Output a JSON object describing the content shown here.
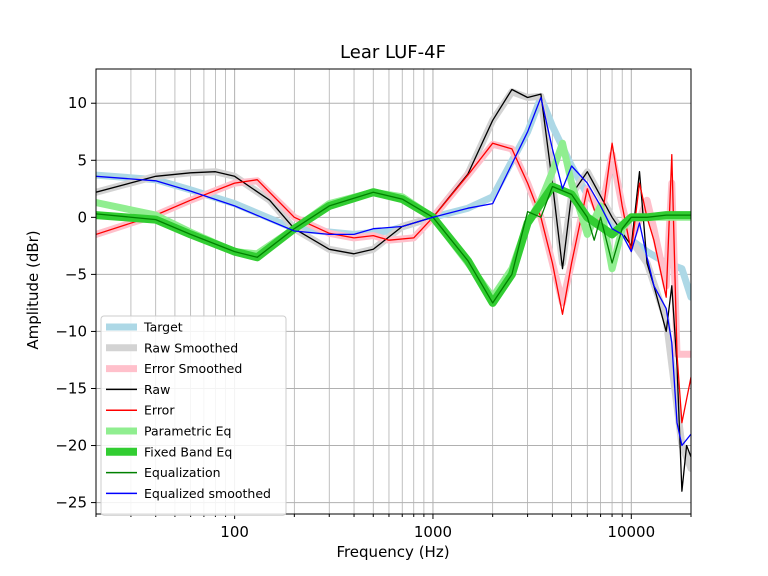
{
  "chart_data": {
    "type": "line",
    "title": "Lear LUF-4F",
    "xlabel": "Frequency (Hz)",
    "ylabel": "Amplitude (dBr)",
    "x_scale": "log",
    "xlim": [
      20,
      20000
    ],
    "ylim": [
      -26,
      13
    ],
    "x_major_ticks": [
      100,
      1000,
      10000
    ],
    "x_tick_labels": [
      "100",
      "1000",
      "10000"
    ],
    "y_ticks": [
      -25,
      -20,
      -15,
      -10,
      -5,
      0,
      5,
      10
    ],
    "y_tick_labels": [
      "−25",
      "−20",
      "−15",
      "−10",
      "−5",
      "0",
      "5",
      "10"
    ],
    "grid": true,
    "legend_position": "lower-left",
    "series": [
      {
        "name": "Target",
        "color": "#add8e6",
        "style": "thick",
        "points": [
          [
            20,
            3.7
          ],
          [
            40,
            3.3
          ],
          [
            60,
            2.4
          ],
          [
            100,
            1.2
          ],
          [
            200,
            -1.0
          ],
          [
            400,
            -1.5
          ],
          [
            600,
            -1.2
          ],
          [
            1000,
            0
          ],
          [
            1500,
            0.8
          ],
          [
            2000,
            1.8
          ],
          [
            3000,
            7.5
          ],
          [
            3500,
            10.5
          ],
          [
            4000,
            8
          ],
          [
            5000,
            4.5
          ],
          [
            6000,
            2
          ],
          [
            8000,
            -0.5
          ],
          [
            10000,
            -2
          ],
          [
            12000,
            -3
          ],
          [
            15000,
            -4
          ],
          [
            18000,
            -4.5
          ],
          [
            20000,
            -7
          ]
        ]
      },
      {
        "name": "Raw Smoothed",
        "color": "#d3d3d3",
        "style": "thick",
        "points": [
          [
            20,
            2.2
          ],
          [
            40,
            3.6
          ],
          [
            60,
            3.9
          ],
          [
            80,
            4.0
          ],
          [
            100,
            3.6
          ],
          [
            150,
            1.5
          ],
          [
            200,
            -1.0
          ],
          [
            300,
            -2.8
          ],
          [
            400,
            -3.2
          ],
          [
            500,
            -2.8
          ],
          [
            700,
            -0.8
          ],
          [
            1000,
            0
          ],
          [
            1500,
            3.8
          ],
          [
            2000,
            8.5
          ],
          [
            2500,
            11.0
          ],
          [
            3000,
            10.5
          ],
          [
            3500,
            10.6
          ],
          [
            4000,
            3
          ],
          [
            4500,
            -4
          ],
          [
            5000,
            2
          ],
          [
            6000,
            4
          ],
          [
            8000,
            0
          ],
          [
            10000,
            -2
          ],
          [
            12000,
            -4
          ],
          [
            15000,
            -9
          ],
          [
            18000,
            -20
          ],
          [
            20000,
            -22
          ]
        ]
      },
      {
        "name": "Error Smoothed",
        "color": "#ffc0cb",
        "style": "thick",
        "points": [
          [
            20,
            -1.5
          ],
          [
            40,
            0.2
          ],
          [
            60,
            1.5
          ],
          [
            100,
            3.0
          ],
          [
            130,
            3.2
          ],
          [
            200,
            0.0
          ],
          [
            300,
            -1.4
          ],
          [
            400,
            -1.8
          ],
          [
            500,
            -1.6
          ],
          [
            600,
            -2.0
          ],
          [
            800,
            -1.8
          ],
          [
            1000,
            0
          ],
          [
            1500,
            3.7
          ],
          [
            2000,
            6.4
          ],
          [
            2500,
            6.0
          ],
          [
            3000,
            3.0
          ],
          [
            3500,
            0
          ],
          [
            4000,
            -4
          ],
          [
            4500,
            -7.5
          ],
          [
            5000,
            -4
          ],
          [
            6000,
            2.5
          ],
          [
            7000,
            0
          ],
          [
            8000,
            5.5
          ],
          [
            9000,
            1
          ],
          [
            10000,
            -2
          ],
          [
            12000,
            1.5
          ],
          [
            13000,
            -1
          ],
          [
            15000,
            -6
          ],
          [
            16000,
            3
          ],
          [
            17000,
            -12
          ],
          [
            20000,
            -12
          ]
        ]
      },
      {
        "name": "Raw",
        "color": "#000000",
        "style": "thin",
        "points": [
          [
            20,
            2.2
          ],
          [
            40,
            3.6
          ],
          [
            60,
            3.9
          ],
          [
            80,
            4.0
          ],
          [
            100,
            3.6
          ],
          [
            150,
            1.5
          ],
          [
            200,
            -1.0
          ],
          [
            300,
            -2.8
          ],
          [
            400,
            -3.2
          ],
          [
            500,
            -2.8
          ],
          [
            700,
            -0.8
          ],
          [
            1000,
            0
          ],
          [
            1500,
            3.8
          ],
          [
            2000,
            8.5
          ],
          [
            2500,
            11.2
          ],
          [
            3000,
            10.5
          ],
          [
            3500,
            10.8
          ],
          [
            4000,
            3
          ],
          [
            4500,
            -4.5
          ],
          [
            5000,
            2
          ],
          [
            6000,
            4
          ],
          [
            8000,
            0
          ],
          [
            10000,
            -2.5
          ],
          [
            11000,
            4
          ],
          [
            12000,
            -4
          ],
          [
            13000,
            -6
          ],
          [
            15000,
            -10
          ],
          [
            16000,
            -6
          ],
          [
            17000,
            -13
          ],
          [
            18000,
            -24
          ],
          [
            19000,
            -20
          ],
          [
            20000,
            -21
          ]
        ]
      },
      {
        "name": "Error",
        "color": "#ff0000",
        "style": "thin",
        "points": [
          [
            20,
            -1.5
          ],
          [
            40,
            0.2
          ],
          [
            60,
            1.5
          ],
          [
            100,
            3.0
          ],
          [
            130,
            3.3
          ],
          [
            200,
            0.0
          ],
          [
            300,
            -1.4
          ],
          [
            400,
            -1.8
          ],
          [
            500,
            -1.6
          ],
          [
            600,
            -2.0
          ],
          [
            800,
            -1.8
          ],
          [
            1000,
            0
          ],
          [
            1500,
            3.7
          ],
          [
            2000,
            6.5
          ],
          [
            2500,
            6.0
          ],
          [
            3000,
            3.0
          ],
          [
            3500,
            0
          ],
          [
            4000,
            -4
          ],
          [
            4500,
            -8.5
          ],
          [
            5000,
            -4
          ],
          [
            6000,
            2.5
          ],
          [
            7000,
            -1
          ],
          [
            8000,
            6.5
          ],
          [
            9000,
            1
          ],
          [
            10000,
            -3
          ],
          [
            11000,
            3
          ],
          [
            12000,
            0
          ],
          [
            13000,
            -2
          ],
          [
            15000,
            -7
          ],
          [
            16000,
            5.5
          ],
          [
            17000,
            -12
          ],
          [
            18000,
            -18
          ],
          [
            20000,
            -14
          ]
        ]
      },
      {
        "name": "Parametric Eq",
        "color": "#90ee90",
        "style": "thick",
        "points": [
          [
            20,
            1.3
          ],
          [
            40,
            0.2
          ],
          [
            60,
            -1.3
          ],
          [
            100,
            -3.0
          ],
          [
            130,
            -3.2
          ],
          [
            200,
            -1.0
          ],
          [
            300,
            1.2
          ],
          [
            500,
            2.2
          ],
          [
            700,
            1.8
          ],
          [
            1000,
            0
          ],
          [
            1500,
            -4.0
          ],
          [
            2000,
            -7.0
          ],
          [
            2500,
            -4.5
          ],
          [
            3000,
            -0.5
          ],
          [
            3500,
            1.5
          ],
          [
            4000,
            4
          ],
          [
            4500,
            6.5
          ],
          [
            5000,
            3
          ],
          [
            6000,
            -1.5
          ],
          [
            7000,
            1
          ],
          [
            8000,
            -4.5
          ],
          [
            9000,
            -1
          ],
          [
            10000,
            0
          ],
          [
            12000,
            0
          ],
          [
            15000,
            0
          ],
          [
            20000,
            0
          ]
        ]
      },
      {
        "name": "Fixed Band Eq",
        "color": "#32cd32",
        "style": "thicker",
        "points": [
          [
            20,
            0.2
          ],
          [
            40,
            -0.2
          ],
          [
            60,
            -1.5
          ],
          [
            100,
            -3.0
          ],
          [
            130,
            -3.5
          ],
          [
            200,
            -1.0
          ],
          [
            300,
            1.0
          ],
          [
            500,
            2.2
          ],
          [
            700,
            1.6
          ],
          [
            1000,
            0
          ],
          [
            1500,
            -3.8
          ],
          [
            2000,
            -7.5
          ],
          [
            2500,
            -5.0
          ],
          [
            3000,
            -0.5
          ],
          [
            4000,
            2.7
          ],
          [
            5000,
            2.0
          ],
          [
            6000,
            0
          ],
          [
            8000,
            -1.5
          ],
          [
            10000,
            0
          ],
          [
            12000,
            0
          ],
          [
            15000,
            0.2
          ],
          [
            20000,
            0.2
          ]
        ]
      },
      {
        "name": "Equalization",
        "color": "#008000",
        "style": "thin",
        "points": [
          [
            20,
            0.3
          ],
          [
            40,
            -0.2
          ],
          [
            60,
            -1.5
          ],
          [
            100,
            -3.0
          ],
          [
            130,
            -3.5
          ],
          [
            200,
            -1.0
          ],
          [
            300,
            1.0
          ],
          [
            500,
            2.2
          ],
          [
            700,
            1.6
          ],
          [
            1000,
            0
          ],
          [
            1500,
            -3.8
          ],
          [
            2000,
            -7.5
          ],
          [
            2500,
            -5.0
          ],
          [
            3000,
            0.5
          ],
          [
            3500,
            0
          ],
          [
            4000,
            2.7
          ],
          [
            5000,
            2.0
          ],
          [
            6000,
            0
          ],
          [
            6500,
            -2
          ],
          [
            7000,
            0
          ],
          [
            8000,
            -4
          ],
          [
            9000,
            -1
          ],
          [
            10000,
            0
          ],
          [
            12000,
            0
          ],
          [
            15000,
            0.2
          ],
          [
            20000,
            0.2
          ]
        ]
      },
      {
        "name": "Equalized smoothed",
        "color": "#0000ff",
        "style": "thin",
        "points": [
          [
            20,
            3.6
          ],
          [
            40,
            3.2
          ],
          [
            60,
            2.3
          ],
          [
            100,
            1.0
          ],
          [
            200,
            -1.2
          ],
          [
            300,
            -1.5
          ],
          [
            400,
            -1.5
          ],
          [
            500,
            -1.0
          ],
          [
            700,
            -0.8
          ],
          [
            1000,
            0
          ],
          [
            1500,
            0.8
          ],
          [
            2000,
            1.2
          ],
          [
            3000,
            7.5
          ],
          [
            3500,
            10.5
          ],
          [
            4000,
            6
          ],
          [
            4500,
            2.5
          ],
          [
            5000,
            4.5
          ],
          [
            6000,
            3
          ],
          [
            7000,
            1
          ],
          [
            8000,
            -1
          ],
          [
            9000,
            -1.5
          ],
          [
            10000,
            -3
          ],
          [
            11000,
            -0.5
          ],
          [
            12000,
            -3.5
          ],
          [
            13000,
            -6
          ],
          [
            15000,
            -8
          ],
          [
            16000,
            -11
          ],
          [
            17000,
            -18
          ],
          [
            18000,
            -20
          ],
          [
            20000,
            -19
          ]
        ]
      }
    ]
  }
}
